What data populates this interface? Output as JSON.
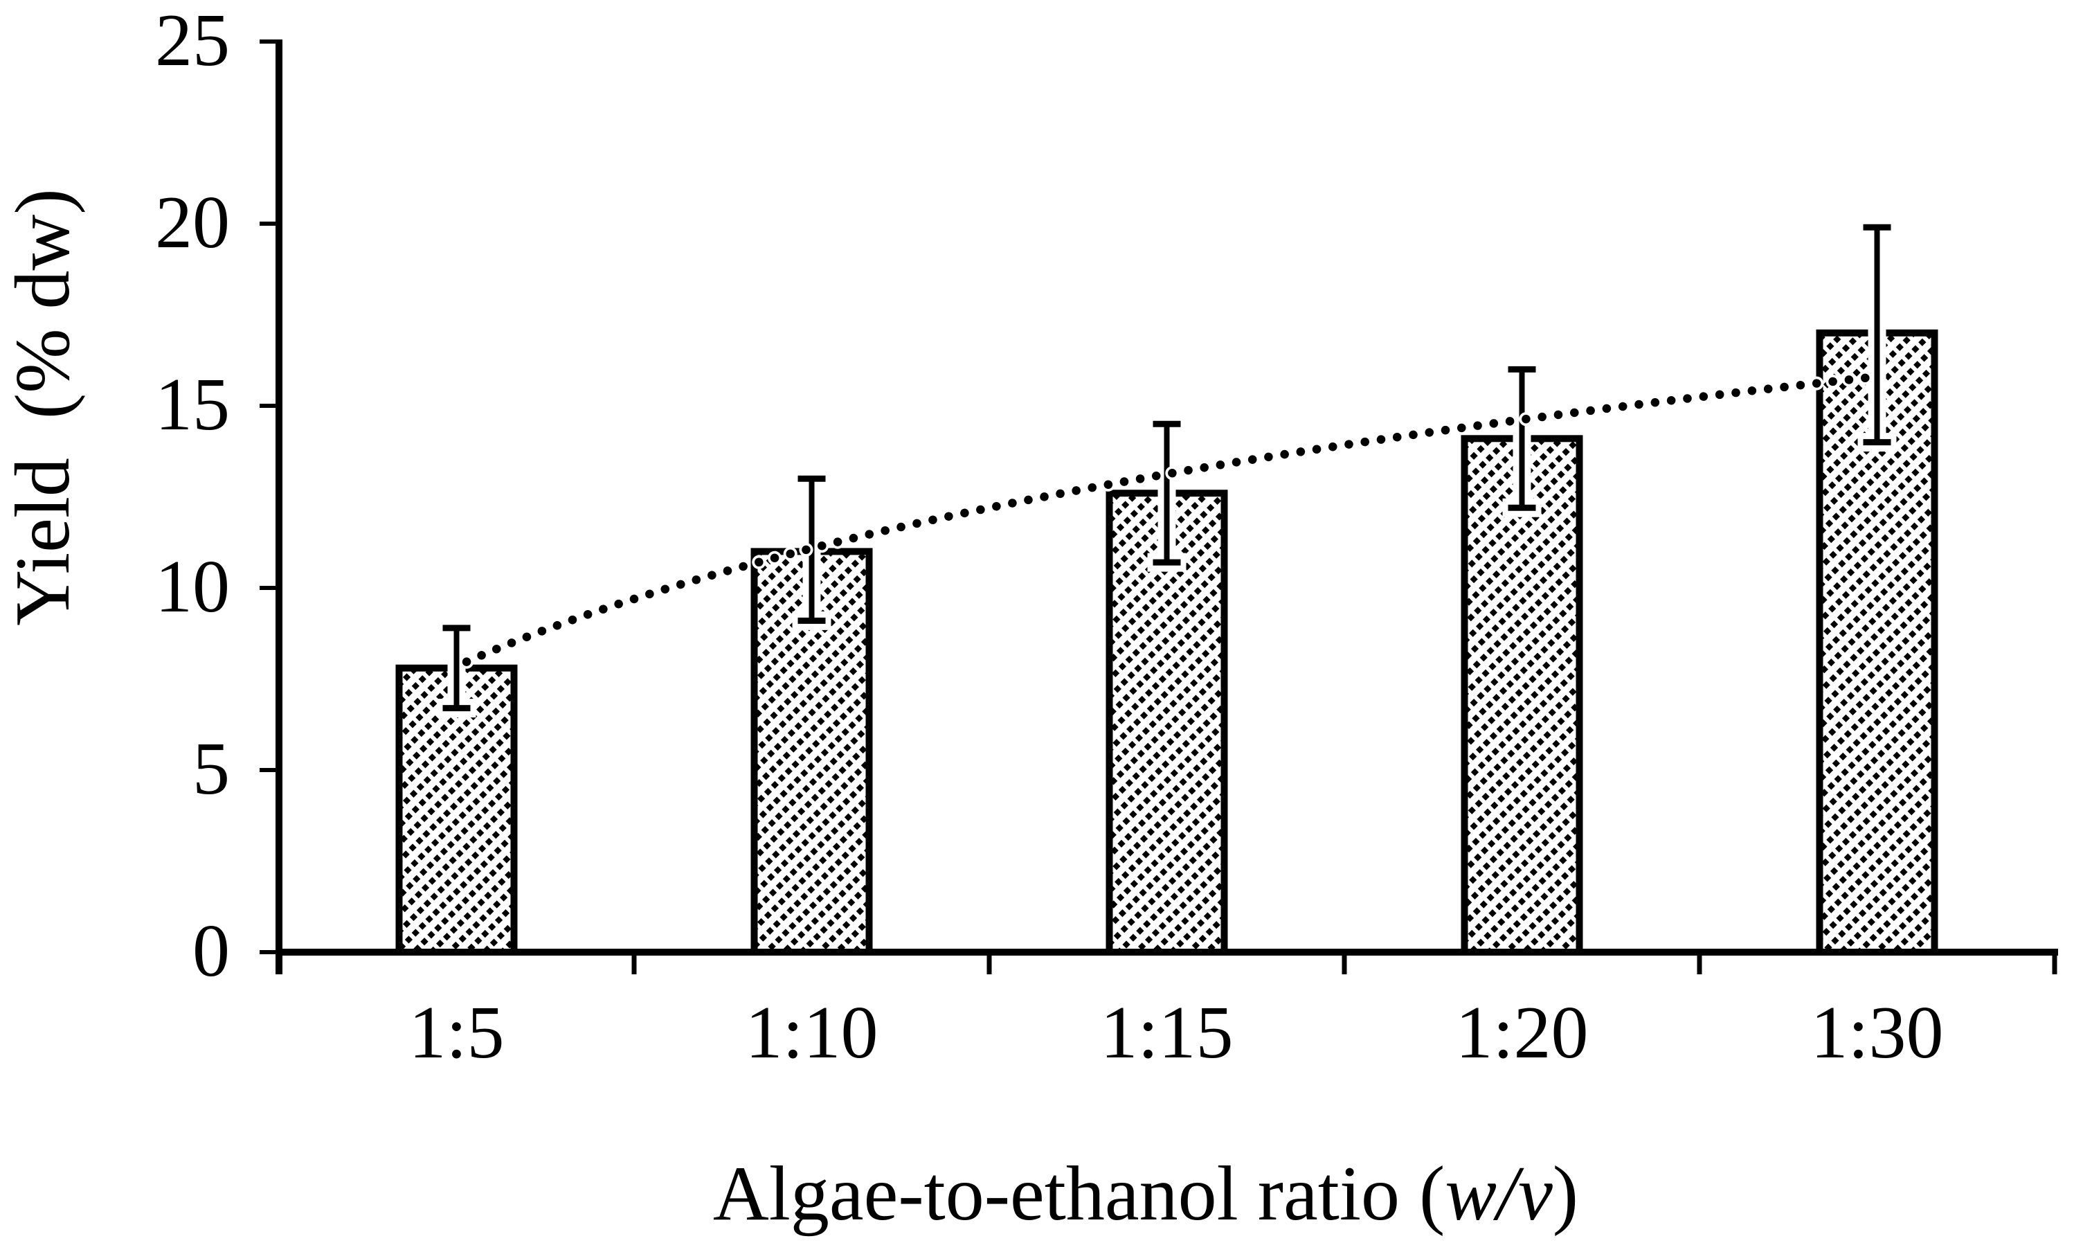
{
  "figure": {
    "background_color": "#ffffff",
    "ink_color": "#000000"
  },
  "chart_data": {
    "type": "bar",
    "title": "",
    "xlabel_parts": {
      "prefix": "Algae-to-ethanol ratio (",
      "italic": "w/v",
      "suffix": ")"
    },
    "ylabel": "Yield  (% dw)",
    "categories": [
      "1:5",
      "1:10",
      "1:15",
      "1:20",
      "1:30"
    ],
    "values": [
      7.8,
      11.0,
      12.6,
      14.1,
      17.0
    ],
    "error_up": [
      1.1,
      2.0,
      1.9,
      1.9,
      2.9
    ],
    "error_down": [
      1.1,
      1.9,
      1.9,
      1.9,
      3.0
    ],
    "trendline": {
      "style": "dotted",
      "shape": "logarithmic",
      "values_at_categories": [
        7.85,
        11.1,
        13.1,
        14.6,
        15.8
      ]
    },
    "y_ticks": [
      0,
      5,
      10,
      15,
      20,
      25
    ],
    "ylim": [
      0,
      25
    ],
    "grid": "off",
    "legend": "none",
    "bar_fill": "diagonal-hatch-up-dashed",
    "bar_outline": "#000000"
  }
}
